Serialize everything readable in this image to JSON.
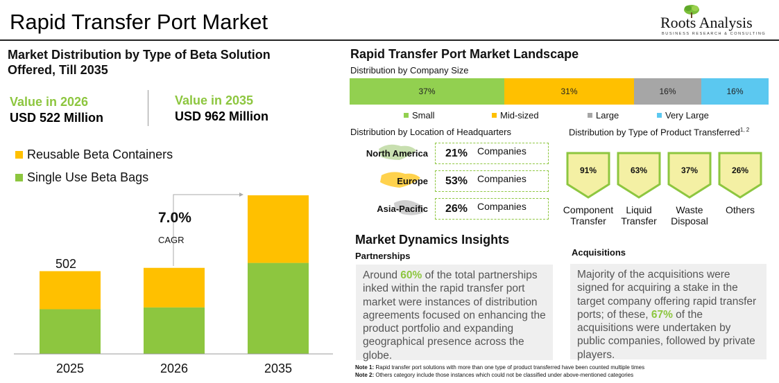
{
  "header": {
    "title": "Rapid Transfer Port Market"
  },
  "logo": {
    "brand": "Roots Analysis",
    "tagline": "BUSINESS RESEARCH & CONSULTING"
  },
  "left": {
    "section_title_line1": "Market Distribution by Type of Beta Solution",
    "section_title_line2": "Offered, Till 2035",
    "value_2026_label": "Value in 2026",
    "value_2026": "USD 522 Million",
    "value_2035_label": "Value in 2035",
    "value_2035": "USD 962 Million",
    "cagr_value": "7.0%",
    "cagr_label": "CAGR",
    "first_bar_label": "502"
  },
  "right": {
    "landscape_title": "Rapid Transfer Port Market Landscape",
    "size_title": "Distribution by Company Size",
    "hq_title": "Distribution by Location of Headquarters",
    "product_title": "Distribution by Type of Product Transferred",
    "product_title_sup": "1, 2",
    "companies_label": "Companies"
  },
  "company_size": [
    {
      "name": "Small",
      "label": "37%",
      "value": 37,
      "color": "#92d050"
    },
    {
      "name": "Mid-sized",
      "label": "31%",
      "value": 31,
      "color": "#ffc000"
    },
    {
      "name": "Large",
      "label": "16%",
      "value": 16,
      "color": "#a6a6a6"
    },
    {
      "name": "Very Large",
      "label": "16%",
      "value": 16,
      "color": "#5bc8f0"
    }
  ],
  "headquarters": [
    {
      "region": "North America",
      "pct": "21%"
    },
    {
      "region": "Europe",
      "pct": "53%"
    },
    {
      "region": "Asia-Pacific",
      "pct": "26%"
    }
  ],
  "products": [
    {
      "pct": "91%",
      "label_line1": "Component",
      "label_line2": "Transfer"
    },
    {
      "pct": "63%",
      "label_line1": "Liquid",
      "label_line2": "Transfer"
    },
    {
      "pct": "37%",
      "label_line1": "Waste",
      "label_line2": "Disposal"
    },
    {
      "pct": "26%",
      "label_line1": "Others",
      "label_line2": ""
    }
  ],
  "dynamics": {
    "title": "Market Dynamics Insights",
    "partnerships_title": "Partnerships",
    "partnerships_pre": "Around ",
    "partnerships_highlight": "60%",
    "partnerships_post": " of the total partnerships inked within the rapid transfer port market were instances of distribution agreements focused on enhancing the product portfolio and expanding geographical presence across the globe.",
    "acquisitions_title": "Acquisitions",
    "acquisitions_pre": "Majority of the acquisitions were signed for acquiring a stake in the target company offering rapid transfer ports; of these, ",
    "acquisitions_highlight": "67%",
    "acquisitions_post": " of the acquisitions were undertaken by public companies, followed by private players."
  },
  "notes": {
    "note1_label": "Note 1:",
    "note1_text": " Rapid transfer port solutions with more than one type of product transferred have been counted multiple times",
    "note2_label": "Note 2:",
    "note2_text": " Others category include those instances which could not be classified under above-mentioned categories"
  },
  "colors": {
    "accent_green": "#8dc63f",
    "bar_green": "#8dc63f",
    "bar_yellow": "#ffc000",
    "shield_fill": "#f4f0a4",
    "shield_stroke": "#8dc63f"
  },
  "chart_data": {
    "type": "bar",
    "stacked": true,
    "categories": [
      "2025",
      "2026",
      "2035"
    ],
    "series": [
      {
        "name": "Single Use Beta Bags",
        "color": "#8dc63f",
        "values": [
          271,
          282,
          552
        ]
      },
      {
        "name": "Reusable Beta Containers",
        "color": "#ffc000",
        "values": [
          231,
          240,
          410
        ]
      }
    ],
    "totals": [
      502,
      522,
      962
    ],
    "legend_position": "top-left",
    "grid": false
  }
}
